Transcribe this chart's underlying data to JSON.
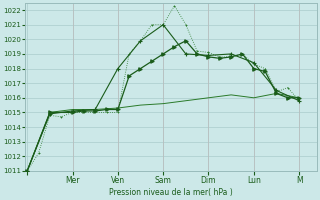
{
  "background_color": "#cce8e8",
  "grid_color": "#aacccc",
  "line_color_dark": "#1a5c1a",
  "line_color_med": "#2a7a2a",
  "ylabel": "Pression niveau de la mer( hPa )",
  "ylim": [
    1011,
    1022.5
  ],
  "yticks": [
    1011,
    1012,
    1013,
    1014,
    1015,
    1016,
    1017,
    1018,
    1019,
    1020,
    1021,
    1022
  ],
  "day_labels": [
    "",
    "Mer",
    "Ven",
    "Sam",
    "Dim",
    "Lun",
    "M"
  ],
  "day_positions": [
    0,
    2,
    4,
    6,
    8,
    10,
    12
  ],
  "xlim": [
    -0.1,
    12.8
  ],
  "line_A_x": [
    0,
    0.5,
    1.0,
    1.5,
    2.0,
    2.5,
    3.0,
    3.5,
    4.0,
    4.5,
    5.0,
    5.5,
    6.0,
    6.5,
    7.0,
    7.5,
    8.0,
    8.5,
    9.0,
    9.5,
    10.0,
    10.5,
    11.0,
    11.5,
    12.0
  ],
  "line_A_y": [
    1011.0,
    1012.2,
    1014.8,
    1014.7,
    1015.0,
    1015.0,
    1015.0,
    1015.0,
    1015.0,
    1019.0,
    1019.9,
    1021.0,
    1021.0,
    1022.3,
    1021.0,
    1019.2,
    1019.1,
    1018.8,
    1018.8,
    1019.0,
    1018.3,
    1018.0,
    1016.4,
    1016.7,
    1015.8
  ],
  "line_B_x": [
    0,
    1.0,
    2.0,
    2.5,
    3.0,
    3.5,
    4.0,
    4.5,
    5.0,
    5.5,
    6.0,
    6.5,
    7.0,
    7.5,
    8.0,
    8.5,
    9.0,
    9.5,
    10.0,
    10.5,
    11.0,
    11.5,
    12.0
  ],
  "line_B_y": [
    1011.0,
    1015.0,
    1015.0,
    1015.1,
    1015.1,
    1015.2,
    1015.2,
    1017.5,
    1018.0,
    1018.5,
    1019.0,
    1019.5,
    1019.9,
    1019.0,
    1018.8,
    1018.7,
    1018.8,
    1019.0,
    1018.0,
    1017.8,
    1016.3,
    1016.0,
    1016.0
  ],
  "line_C_x": [
    0,
    1.0,
    2.0,
    3.0,
    4.0,
    5.0,
    6.0,
    7.0,
    8.0,
    9.0,
    10.0,
    11.0,
    12.0
  ],
  "line_C_y": [
    1011.0,
    1014.9,
    1015.1,
    1015.2,
    1018.0,
    1019.9,
    1021.0,
    1019.0,
    1018.9,
    1019.0,
    1018.4,
    1016.5,
    1015.8
  ],
  "line_D_x": [
    0,
    1.0,
    2.0,
    3.0,
    4.0,
    5.0,
    6.0,
    7.0,
    8.0,
    9.0,
    10.0,
    11.0,
    12.0
  ],
  "line_D_y": [
    1011.0,
    1015.0,
    1015.2,
    1015.2,
    1015.3,
    1015.5,
    1015.6,
    1015.8,
    1016.0,
    1016.2,
    1016.0,
    1016.3,
    1016.0
  ]
}
